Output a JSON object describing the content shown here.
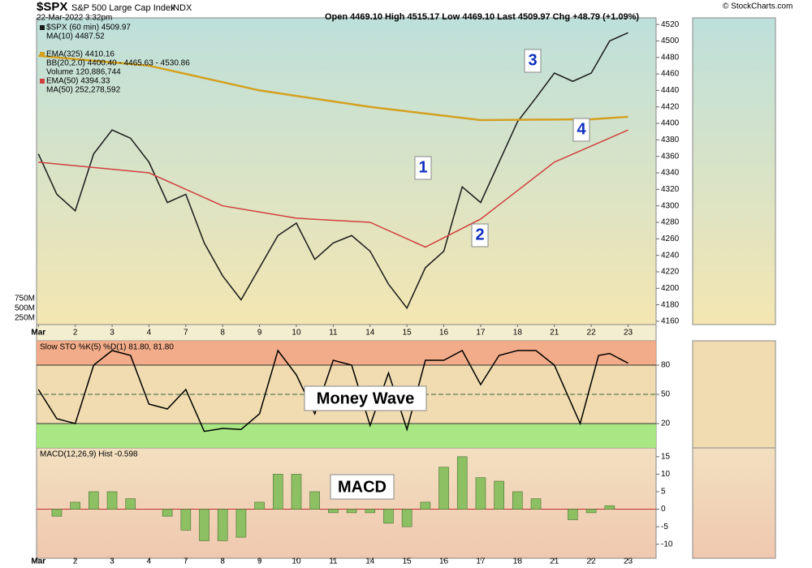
{
  "header": {
    "title": "$SPX",
    "subtitle": "S&P 500 Large Cap Index",
    "exchange": "INDX",
    "date": "22-Mar-2022 3:32pm",
    "quote": "Open 4469.10  High 4515.17  Low 4469.10  Last 4509.97  Chg +48.79 (+1.09%)",
    "source": "© StockCharts.com"
  },
  "chart_data": [
    {
      "type": "line",
      "ylim": [
        4156,
        4528
      ],
      "yticks": [
        4160,
        4180,
        4200,
        4220,
        4240,
        4260,
        4280,
        4300,
        4320,
        4340,
        4360,
        4380,
        4400,
        4420,
        4440,
        4460,
        4480,
        4500,
        4520
      ],
      "xlim": [
        -0.05,
        16.76
      ],
      "xticks": [
        {
          "value": 0,
          "label": "Mar"
        },
        {
          "value": 1,
          "label": "2"
        },
        {
          "value": 2,
          "label": "3"
        },
        {
          "value": 3,
          "label": "4"
        },
        {
          "value": 4,
          "label": "7"
        },
        {
          "value": 5,
          "label": "8"
        },
        {
          "value": 6,
          "label": "9"
        },
        {
          "value": 7,
          "label": "10"
        },
        {
          "value": 8,
          "label": "11"
        },
        {
          "value": 9,
          "label": "14"
        },
        {
          "value": 10,
          "label": "15"
        },
        {
          "value": 11,
          "label": "16"
        },
        {
          "value": 12,
          "label": "17"
        },
        {
          "value": 13,
          "label": "18"
        },
        {
          "value": 14,
          "label": "21"
        },
        {
          "value": 15,
          "label": "22"
        },
        {
          "value": 16,
          "label": "23"
        }
      ],
      "series": [
        {
          "name": "$SPX (60 min) 4509.97",
          "color": "#1a1a1a",
          "x": [
            0,
            0.5,
            1,
            1.5,
            2,
            2.5,
            3,
            3.5,
            4,
            4.5,
            5,
            5.5,
            6,
            6.5,
            7,
            7.5,
            8,
            8.5,
            9,
            9.5,
            10,
            10.5,
            11,
            11.5,
            12,
            12.5,
            13,
            13.5,
            14,
            14.5,
            15,
            15.5,
            16
          ],
          "values": [
            4363,
            4314,
            4294,
            4363,
            4392,
            4382,
            4353,
            4304,
            4314,
            4255,
            4215,
            4186,
            4225,
            4264,
            4279,
            4235,
            4255,
            4264,
            4245,
            4205,
            4176,
            4225,
            4245,
            4323,
            4304,
            4353,
            4402,
            4431,
            4461,
            4451,
            4461,
            4500,
            4510
          ]
        },
        {
          "name": "EMA(325) 4410.16",
          "color": "#d4a020",
          "x": [
            0,
            3,
            6,
            9,
            12,
            15,
            16
          ],
          "values": [
            4482,
            4470,
            4440,
            4420,
            4404,
            4405,
            4408
          ]
        },
        {
          "name": "EMA(50) 4394.33",
          "color": "#d04040",
          "x": [
            0,
            3,
            5,
            7,
            9,
            10.5,
            12,
            14,
            16
          ],
          "values": [
            4353,
            4340,
            4300,
            4285,
            4280,
            4250,
            4284,
            4353,
            4392
          ]
        }
      ],
      "other_legend": [
        {
          "name": "MA(10) 4487.52",
          "color": "#d000d0"
        },
        {
          "name": "BB(20,2.0) 4400.40 - 4465.63 - 4530.86",
          "color": "#909090"
        },
        {
          "name": "Volume 120,886,744",
          "color": "#208020"
        },
        {
          "name": "MA(50) 252,278,592",
          "color": "#9040c0"
        }
      ],
      "volume_labels": [
        "750M",
        "500M",
        "250M"
      ],
      "annotations": [
        "1",
        "2",
        "3",
        "4"
      ]
    },
    {
      "type": "line",
      "title": "Slow STO %K(5) %D(1) 81.80, 81.80",
      "ylim": [
        -5,
        105
      ],
      "yticks": [
        20,
        50,
        80
      ],
      "series": [
        {
          "color": "#000000",
          "x": [
            0,
            0.5,
            1,
            1.5,
            2,
            2.5,
            3,
            3.5,
            4,
            4.5,
            5,
            5.5,
            6,
            6.5,
            7,
            7.5,
            8,
            8.5,
            9,
            9.5,
            10,
            10.5,
            11,
            11.5,
            12,
            12.5,
            13,
            13.5,
            14,
            14.7,
            15.2,
            15.5,
            16
          ],
          "values": [
            55,
            25,
            20,
            80,
            95,
            90,
            40,
            35,
            55,
            12,
            15,
            14,
            30,
            95,
            70,
            30,
            85,
            80,
            18,
            72,
            14,
            85,
            85,
            95,
            60,
            90,
            95,
            95,
            80,
            20,
            90,
            92,
            82
          ]
        }
      ],
      "annotation": "Money Wave"
    },
    {
      "type": "bar",
      "title": "MACD(12,26,9) Hist -0.598",
      "ylim": [
        -14,
        17.5
      ],
      "yticks": [
        -10,
        -5,
        0,
        5,
        10,
        15
      ],
      "xlim": [
        -0.05,
        16.76
      ],
      "xticks": [
        {
          "value": 0,
          "label": "Mar"
        },
        {
          "value": 1,
          "label": "2"
        },
        {
          "value": 2,
          "label": "3"
        },
        {
          "value": 3,
          "label": "4"
        },
        {
          "value": 4,
          "label": "7"
        },
        {
          "value": 5,
          "label": "8"
        },
        {
          "value": 6,
          "label": "9"
        },
        {
          "value": 7,
          "label": "10"
        },
        {
          "value": 8,
          "label": "11"
        },
        {
          "value": 9,
          "label": "14"
        },
        {
          "value": 10,
          "label": "15"
        },
        {
          "value": 11,
          "label": "16"
        },
        {
          "value": 12,
          "label": "17"
        },
        {
          "value": 13,
          "label": "18"
        },
        {
          "value": 14,
          "label": "21"
        },
        {
          "value": 15,
          "label": "22"
        },
        {
          "value": 16,
          "label": "23"
        }
      ],
      "color": "#8cc063",
      "x": [
        0,
        0.5,
        1,
        1.5,
        2,
        2.5,
        3,
        3.5,
        4,
        4.5,
        5,
        5.5,
        6,
        6.5,
        7,
        7.5,
        8,
        8.5,
        9,
        9.5,
        10,
        10.5,
        11,
        11.5,
        12,
        12.5,
        13,
        13.5,
        14,
        14.5,
        15,
        15.5,
        16
      ],
      "values": [
        0,
        -2,
        2,
        5,
        5,
        3,
        0,
        -2,
        -6,
        -9,
        -9,
        -8,
        2,
        10,
        10,
        5,
        -1,
        -1,
        -1,
        -4,
        -5,
        2,
        12,
        15,
        9,
        8,
        5,
        3,
        0,
        -3,
        -1,
        1,
        0
      ],
      "annotation": "MACD"
    }
  ]
}
